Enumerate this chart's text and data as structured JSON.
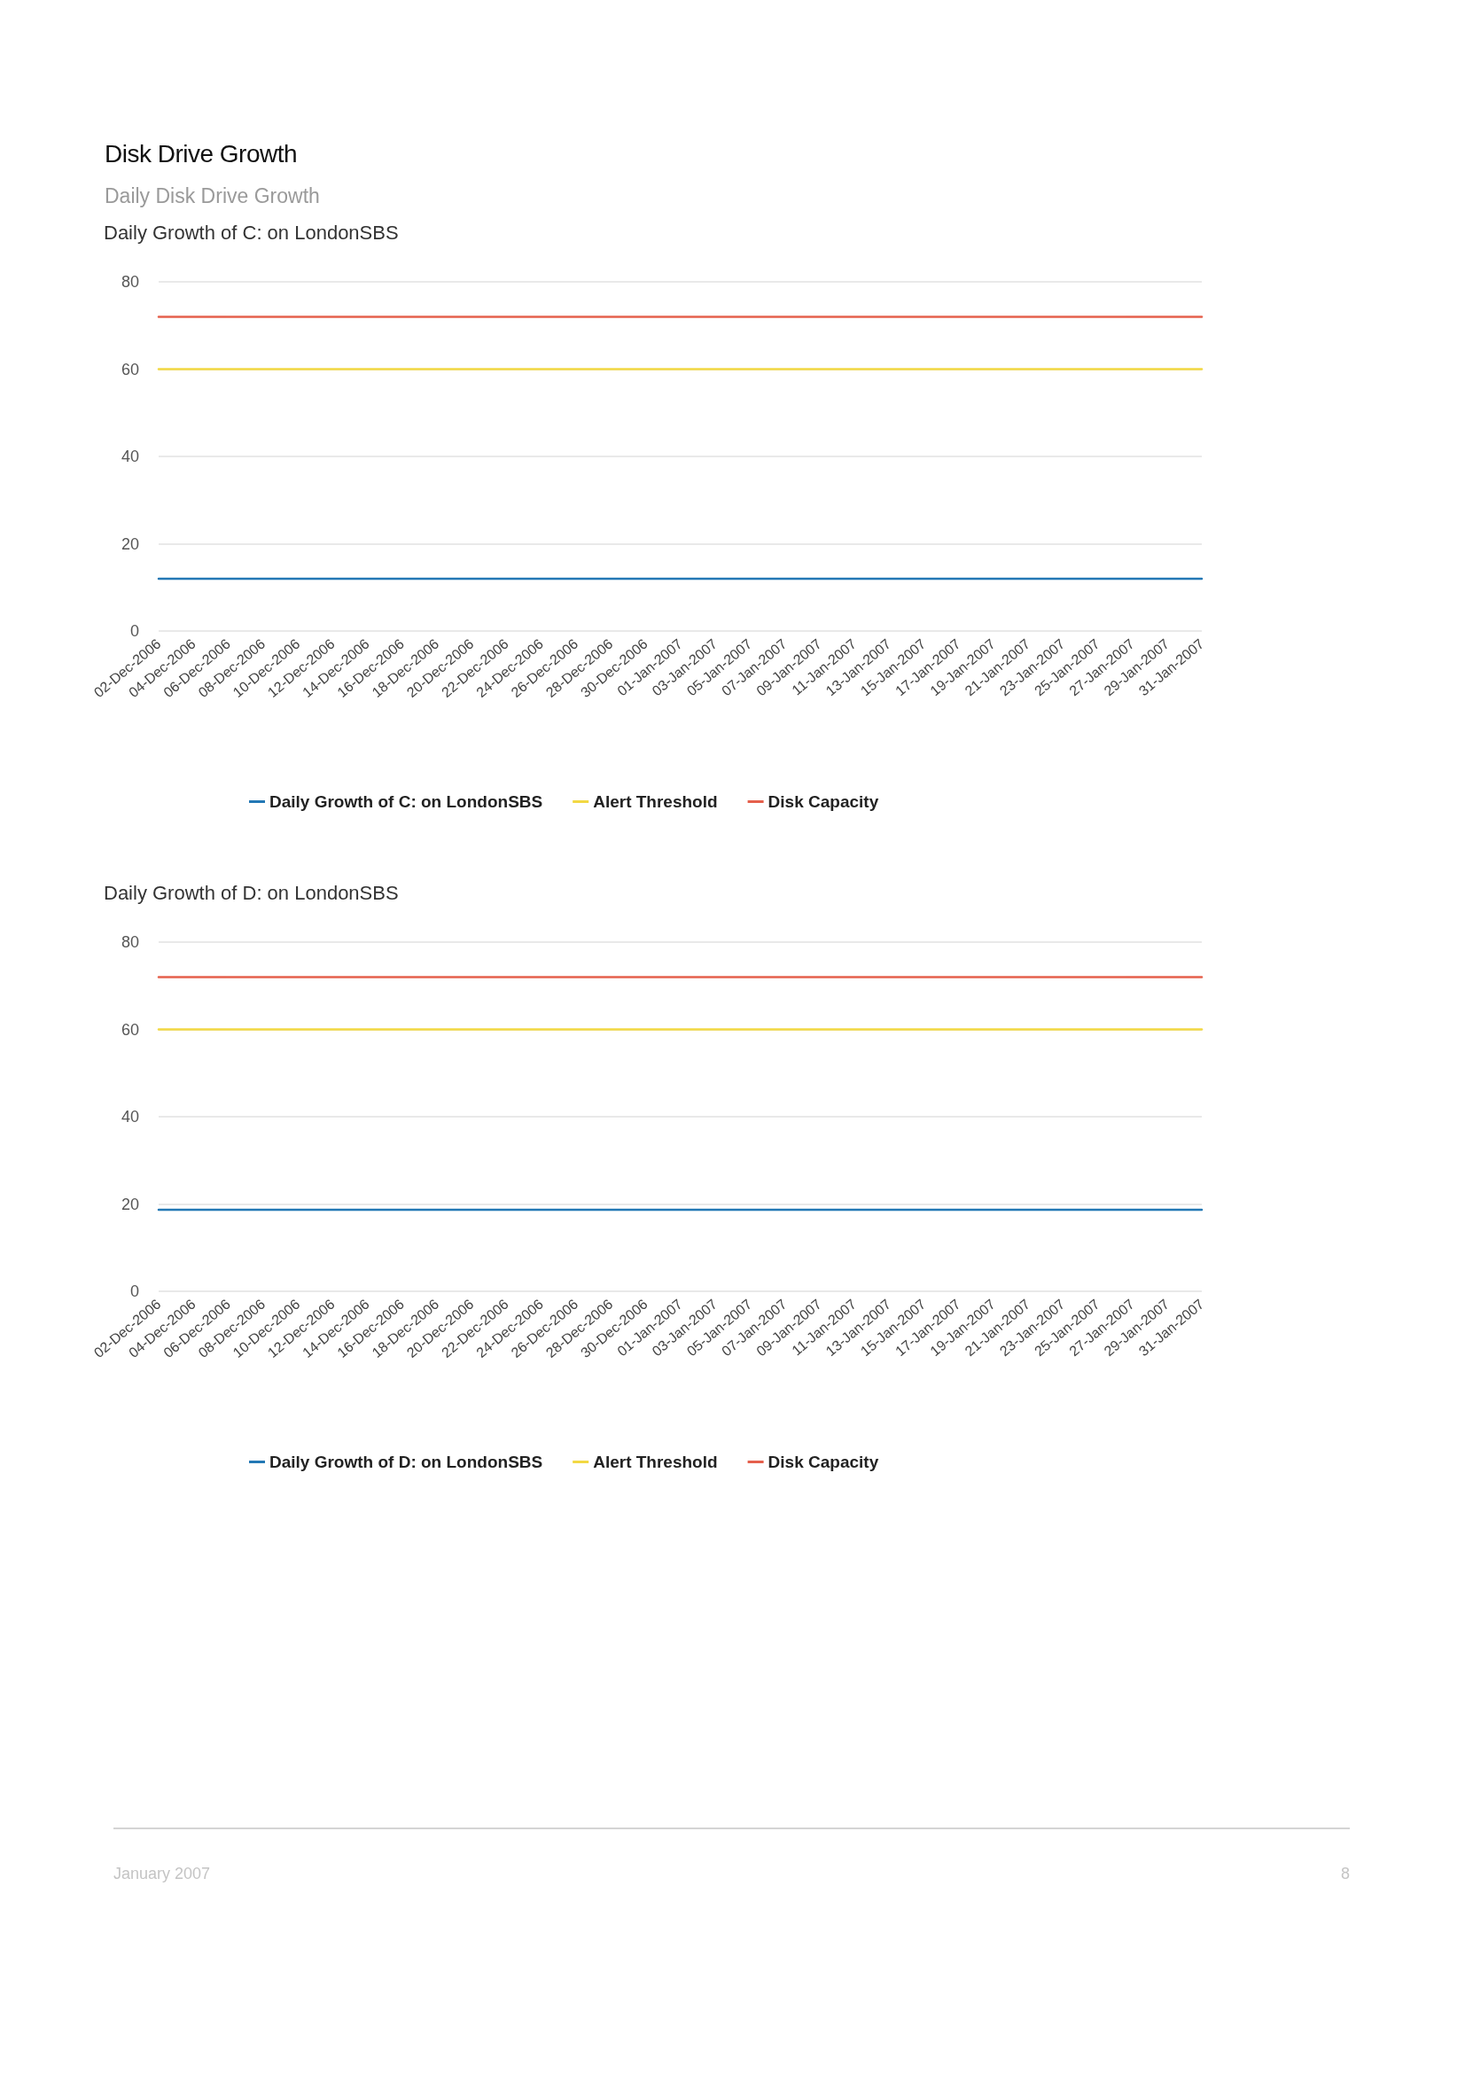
{
  "chart_data": [
    {
      "type": "other",
      "title": "Disk Drive Growth",
      "subtitle": "Daily Disk Drive Growth"
    },
    {
      "type": "line",
      "title": "Daily Growth of C: on LondonSBS",
      "categories": [
        "02-Dec-2006",
        "04-Dec-2006",
        "06-Dec-2006",
        "08-Dec-2006",
        "10-Dec-2006",
        "12-Dec-2006",
        "14-Dec-2006",
        "16-Dec-2006",
        "18-Dec-2006",
        "20-Dec-2006",
        "22-Dec-2006",
        "24-Dec-2006",
        "26-Dec-2006",
        "28-Dec-2006",
        "30-Dec-2006",
        "01-Jan-2007",
        "03-Jan-2007",
        "05-Jan-2007",
        "07-Jan-2007",
        "09-Jan-2007",
        "11-Jan-2007",
        "13-Jan-2007",
        "15-Jan-2007",
        "17-Jan-2007",
        "19-Jan-2007",
        "21-Jan-2007",
        "23-Jan-2007",
        "25-Jan-2007",
        "27-Jan-2007",
        "29-Jan-2007",
        "31-Jan-2007"
      ],
      "series": [
        {
          "name": "Daily Growth of C: on LondonSBS",
          "color": "#2378b5",
          "values": [
            12,
            12,
            12,
            12,
            12,
            12,
            12,
            12,
            12,
            12,
            12,
            12,
            12,
            12,
            12,
            12,
            12,
            12,
            12,
            12,
            12,
            12,
            12,
            12,
            12,
            12,
            12,
            12,
            12,
            12,
            12
          ]
        },
        {
          "name": "Alert Threshold",
          "color": "#f2d843",
          "values": [
            60,
            60,
            60,
            60,
            60,
            60,
            60,
            60,
            60,
            60,
            60,
            60,
            60,
            60,
            60,
            60,
            60,
            60,
            60,
            60,
            60,
            60,
            60,
            60,
            60,
            60,
            60,
            60,
            60,
            60,
            60
          ]
        },
        {
          "name": "Disk Capacity",
          "color": "#e5604c",
          "values": [
            72,
            72,
            72,
            72,
            72,
            72,
            72,
            72,
            72,
            72,
            72,
            72,
            72,
            72,
            72,
            72,
            72,
            72,
            72,
            72,
            72,
            72,
            72,
            72,
            72,
            72,
            72,
            72,
            72,
            72,
            72
          ]
        }
      ],
      "ylim": [
        0,
        80
      ],
      "yticks": [
        0,
        20,
        40,
        60,
        80
      ],
      "grid": "y",
      "legend": "bottom",
      "marker": "none"
    },
    {
      "type": "line",
      "title": "Daily Growth of D: on LondonSBS",
      "categories": [
        "02-Dec-2006",
        "04-Dec-2006",
        "06-Dec-2006",
        "08-Dec-2006",
        "10-Dec-2006",
        "12-Dec-2006",
        "14-Dec-2006",
        "16-Dec-2006",
        "18-Dec-2006",
        "20-Dec-2006",
        "22-Dec-2006",
        "24-Dec-2006",
        "26-Dec-2006",
        "28-Dec-2006",
        "30-Dec-2006",
        "01-Jan-2007",
        "03-Jan-2007",
        "05-Jan-2007",
        "07-Jan-2007",
        "09-Jan-2007",
        "11-Jan-2007",
        "13-Jan-2007",
        "15-Jan-2007",
        "17-Jan-2007",
        "19-Jan-2007",
        "21-Jan-2007",
        "23-Jan-2007",
        "25-Jan-2007",
        "27-Jan-2007",
        "29-Jan-2007",
        "31-Jan-2007"
      ],
      "series": [
        {
          "name": "Daily Growth of D: on LondonSBS",
          "color": "#2378b5",
          "values": [
            18.7,
            18.7,
            18.7,
            18.7,
            18.7,
            18.7,
            18.7,
            18.7,
            18.7,
            18.7,
            18.7,
            18.7,
            18.7,
            18.7,
            18.7,
            18.7,
            18.7,
            18.7,
            18.7,
            18.7,
            18.7,
            18.7,
            18.7,
            18.7,
            18.7,
            18.7,
            18.7,
            18.7,
            18.7,
            18.7,
            18.7
          ]
        },
        {
          "name": "Alert Threshold",
          "color": "#f2d843",
          "values": [
            60,
            60,
            60,
            60,
            60,
            60,
            60,
            60,
            60,
            60,
            60,
            60,
            60,
            60,
            60,
            60,
            60,
            60,
            60,
            60,
            60,
            60,
            60,
            60,
            60,
            60,
            60,
            60,
            60,
            60,
            60
          ]
        },
        {
          "name": "Disk Capacity",
          "color": "#e5604c",
          "values": [
            72,
            72,
            72,
            72,
            72,
            72,
            72,
            72,
            72,
            72,
            72,
            72,
            72,
            72,
            72,
            72,
            72,
            72,
            72,
            72,
            72,
            72,
            72,
            72,
            72,
            72,
            72,
            72,
            72,
            72,
            72
          ]
        }
      ],
      "ylim": [
        0,
        80
      ],
      "yticks": [
        0,
        20,
        40,
        60,
        80
      ],
      "grid": "y",
      "legend": "bottom",
      "marker": "none"
    },
    {
      "type": "other",
      "annotations": [
        "January 2007",
        "8"
      ]
    }
  ]
}
